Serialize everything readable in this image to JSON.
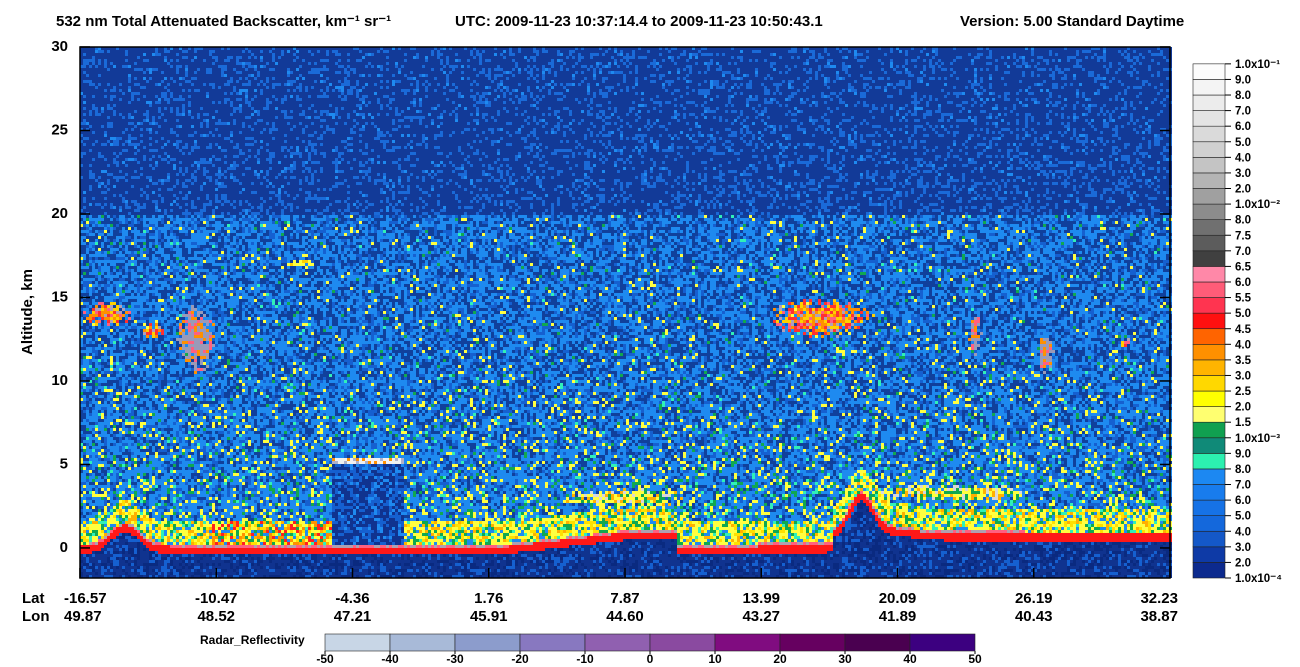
{
  "chart_data": {
    "type": "heatmap",
    "title": "532 nm Total Attenuated Backscatter, km⁻¹ sr⁻¹",
    "time_range": "UTC:  2009-11-23 10:37:14.4  to  2009-11-23 10:50:43.1",
    "version": "Version: 5.00  Standard  Daytime",
    "y_label": "Altitude, km",
    "ylim": [
      -1.8,
      30
    ],
    "yticks": [
      0,
      5,
      10,
      15,
      20,
      25,
      30
    ],
    "x_lat_label": "Lat",
    "x_lon_label": "Lon",
    "x_lat": [
      "-16.57",
      "-10.47",
      "-4.36",
      "1.76",
      "7.87",
      "13.99",
      "20.09",
      "26.19",
      "32.23"
    ],
    "x_lon": [
      "49.87",
      "48.52",
      "47.21",
      "45.91",
      "44.60",
      "43.27",
      "41.89",
      "40.43",
      "38.87"
    ],
    "colorbar": {
      "labels": [
        "1.0x10⁻⁴",
        "2.0",
        "3.0",
        "4.0",
        "5.0",
        "6.0",
        "7.0",
        "8.0",
        "9.0",
        "1.0x10⁻³",
        "1.5",
        "2.0",
        "2.5",
        "3.0",
        "3.5",
        "4.0",
        "4.5",
        "5.0",
        "5.5",
        "6.0",
        "6.5",
        "7.0",
        "7.5",
        "8.0",
        "1.0x10⁻²",
        "2.0",
        "3.0",
        "4.0",
        "5.0",
        "6.0",
        "7.0",
        "8.0",
        "9.0",
        "1.0x10⁻¹"
      ],
      "colors": [
        "#0c2a8e",
        "#0e3aa6",
        "#1458c8",
        "#1468dc",
        "#1672e6",
        "#187ced",
        "#1c88f2",
        "#2cf0b0",
        "#108a78",
        "#10a050",
        "#ffff70",
        "#ffff00",
        "#ffd800",
        "#ffb400",
        "#ff9000",
        "#ff6400",
        "#ff1010",
        "#ff3450",
        "#ff5c78",
        "#ff88a8",
        "#404040",
        "#5c5c5c",
        "#707070",
        "#8c8c8c",
        "#a0a0a0",
        "#b4b4b4",
        "#c4c4c4",
        "#d0d0d0",
        "#dadada",
        "#e4e4e4",
        "#ececec",
        "#f4f4f4",
        "#fcfcfc"
      ]
    },
    "radar": {
      "label": "Radar_Reflectivity",
      "xlim": [
        -50,
        50
      ],
      "ticks": [
        -50,
        -40,
        -30,
        -20,
        -10,
        0,
        10,
        20,
        30,
        40,
        50
      ],
      "colors": [
        "#c8d6e6",
        "#a8bad8",
        "#8c9ccc",
        "#8878c0",
        "#9060b0",
        "#8a4aa0",
        "#800c80",
        "#660060",
        "#4a0050",
        "#3c0080"
      ]
    }
  }
}
